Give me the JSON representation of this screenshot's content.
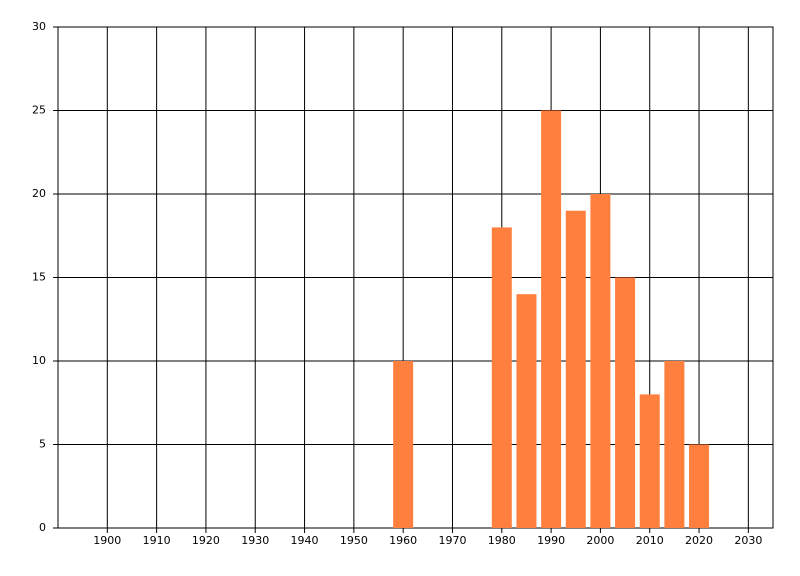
{
  "chart_data": {
    "type": "bar",
    "x": [
      1960,
      1980,
      1985,
      1990,
      1995,
      2000,
      2005,
      2010,
      2015,
      2020
    ],
    "values": [
      10,
      18,
      14,
      25,
      19,
      20,
      15,
      8,
      10,
      5
    ],
    "color": "#ff7f3f",
    "xlim": [
      1890,
      2035
    ],
    "xticks": [
      1900,
      1910,
      1920,
      1930,
      1940,
      1950,
      1960,
      1970,
      1980,
      1990,
      2000,
      2010,
      2020,
      2030
    ],
    "ylim": [
      0,
      30
    ],
    "yticks": [
      0,
      5,
      10,
      15,
      20,
      25,
      30
    ],
    "grid": true
  }
}
